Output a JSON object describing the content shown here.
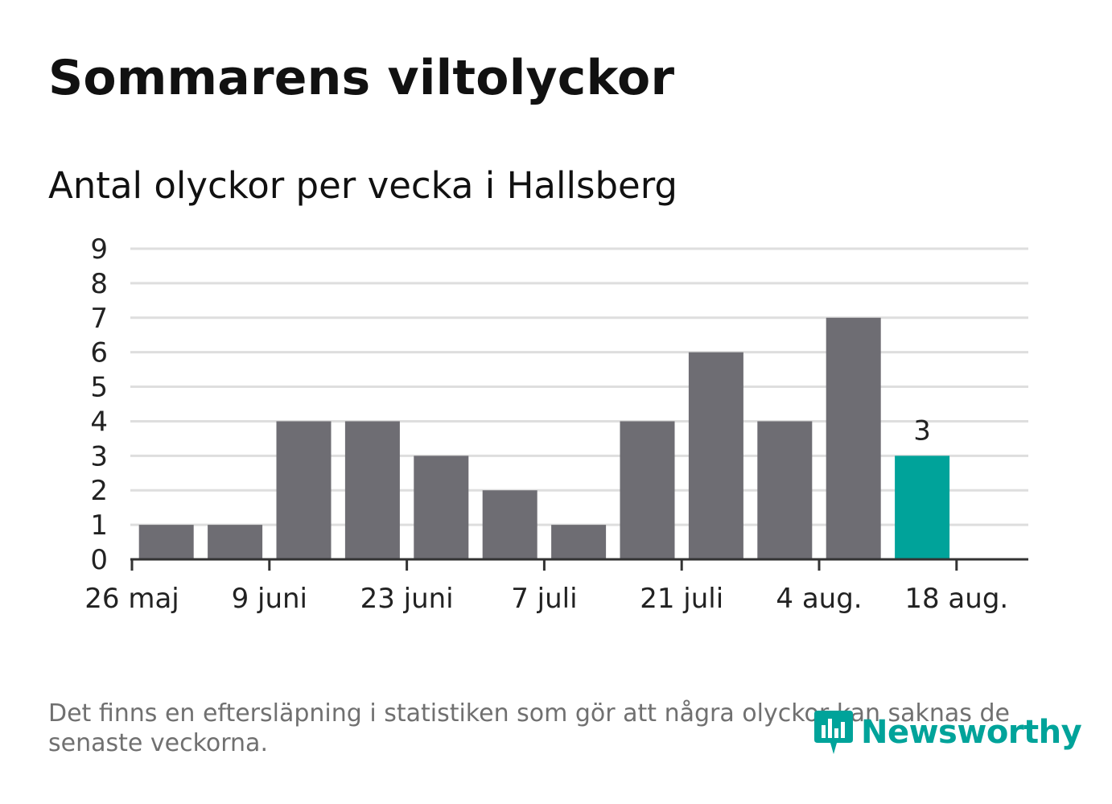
{
  "title": "Sommarens viltolyckor",
  "subtitle": "Antal olyckor per vecka i Hallsberg",
  "footnote": "Det finns en eftersläpning i statistiken som gör att några olyckor kan saknas de senaste veckorna.",
  "logo_text": "Newsworthy",
  "colors": {
    "bar": "#6e6d73",
    "highlight": "#00a39a",
    "grid": "#dedede",
    "axis": "#333333",
    "text": "#222222"
  },
  "chart_data": {
    "type": "bar",
    "title": "Sommarens viltolyckor",
    "subtitle": "Antal olyckor per vecka i Hallsberg",
    "xlabel": "",
    "ylabel": "",
    "ylim": [
      0,
      9
    ],
    "yticks": [
      0,
      1,
      2,
      3,
      4,
      5,
      6,
      7,
      8,
      9
    ],
    "x_tick_labels": [
      "26 maj",
      "9 juni",
      "23 juni",
      "7 juli",
      "21 juli",
      "4 aug.",
      "18 aug."
    ],
    "values": [
      0,
      1,
      1,
      4,
      4,
      3,
      2,
      1,
      4,
      6,
      4,
      7,
      3
    ],
    "highlight_index": 12,
    "highlight_label": "3",
    "grid": true
  }
}
